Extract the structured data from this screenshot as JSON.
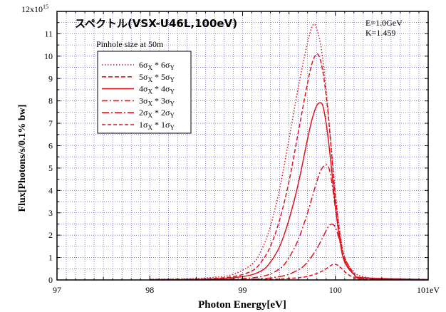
{
  "chart_data": {
    "type": "line",
    "title": "スペクトル(VSX-U46L,100eV)",
    "annotation": [
      "E=1.0GeV",
      "K=1.459"
    ],
    "legend_title": "Pinhole size at 50m",
    "legend_placement": "top-left",
    "xlabel": "Photon Energy[eV]",
    "ylabel": "Flux[Photons/s/0.1% bw]",
    "y_multiplier_label": "12x10",
    "y_multiplier_exp": "15",
    "x_unit_suffix": "eV",
    "xlim": [
      97,
      101
    ],
    "ylim": [
      0,
      12
    ],
    "y_scale": 1000000000000000.0,
    "xticks": [
      97,
      98,
      99,
      100,
      101
    ],
    "yticks": [
      0,
      1,
      2,
      3,
      4,
      5,
      6,
      7,
      8,
      9,
      10,
      11
    ],
    "grid": true,
    "color": "#e0141e",
    "series": [
      {
        "name": "6σX * 6σY",
        "legend": {
          "n": "6",
          "a": "σ",
          "as": "X",
          "b": "6σ",
          "bs": "Y"
        },
        "dash": "1.5,2.5",
        "x": [
          98.0,
          98.4,
          98.7,
          98.9,
          99.1,
          99.2,
          99.3,
          99.4,
          99.5,
          99.6,
          99.7,
          99.76,
          99.8,
          99.85,
          99.9,
          99.95,
          100.0,
          100.05,
          100.1,
          100.2,
          100.3,
          100.5,
          101.0
        ],
        "y": [
          0.03,
          0.05,
          0.12,
          0.25,
          0.7,
          1.3,
          2.4,
          4.1,
          6.3,
          8.6,
          10.6,
          11.4,
          11.2,
          10.3,
          8.5,
          6.2,
          3.9,
          2.1,
          1.0,
          0.35,
          0.15,
          0.05,
          0.02
        ]
      },
      {
        "name": "5σX * 5σY",
        "legend": {
          "n": "5",
          "a": "σ",
          "as": "X",
          "b": "5σ",
          "bs": "Y"
        },
        "dash": "6,3",
        "x": [
          98.0,
          98.6,
          98.9,
          99.1,
          99.2,
          99.3,
          99.4,
          99.5,
          99.6,
          99.7,
          99.75,
          99.8,
          99.84,
          99.88,
          99.92,
          99.96,
          100.0,
          100.05,
          100.1,
          100.2,
          100.3,
          101.0
        ],
        "y": [
          0.02,
          0.05,
          0.15,
          0.4,
          0.8,
          1.5,
          2.7,
          4.4,
          6.6,
          8.8,
          9.7,
          10.1,
          9.8,
          8.9,
          7.5,
          5.6,
          3.7,
          2.0,
          1.0,
          0.3,
          0.1,
          0.02
        ]
      },
      {
        "name": "4σX * 4σY",
        "legend": {
          "n": "4",
          "a": "σ",
          "as": "X",
          "b": "4σ",
          "bs": "Y"
        },
        "dash": "",
        "x": [
          98.0,
          98.6,
          99.0,
          99.2,
          99.3,
          99.4,
          99.5,
          99.6,
          99.7,
          99.75,
          99.8,
          99.85,
          99.88,
          99.92,
          99.96,
          100.0,
          100.05,
          100.1,
          100.2,
          100.3,
          101.0
        ],
        "y": [
          0.01,
          0.03,
          0.15,
          0.4,
          0.8,
          1.5,
          2.7,
          4.3,
          6.3,
          7.2,
          7.8,
          7.9,
          7.5,
          6.4,
          4.9,
          3.3,
          1.7,
          0.8,
          0.25,
          0.1,
          0.02
        ]
      },
      {
        "name": "3σX * 3σY",
        "legend": {
          "n": "3",
          "a": "σ",
          "as": "X",
          "b": "3σ",
          "bs": "Y"
        },
        "dash": "8,3,2,3",
        "x": [
          98.0,
          98.8,
          99.2,
          99.4,
          99.5,
          99.6,
          99.7,
          99.8,
          99.85,
          99.9,
          99.93,
          99.96,
          100.0,
          100.05,
          100.1,
          100.2,
          100.3,
          101.0
        ],
        "y": [
          0.01,
          0.03,
          0.15,
          0.5,
          1.0,
          1.8,
          3.0,
          4.4,
          4.95,
          5.15,
          5.0,
          4.4,
          3.2,
          1.8,
          0.9,
          0.25,
          0.08,
          0.01
        ]
      },
      {
        "name": "2σX * 2σY",
        "legend": {
          "n": "2",
          "a": "σ",
          "as": "X",
          "b": "2σ",
          "bs": "Y"
        },
        "dash": "10,3,2,3",
        "x": [
          98.0,
          99.0,
          99.4,
          99.6,
          99.7,
          99.8,
          99.87,
          99.92,
          99.96,
          100.0,
          100.05,
          100.1,
          100.2,
          100.3,
          101.0
        ],
        "y": [
          0.01,
          0.02,
          0.15,
          0.45,
          0.8,
          1.4,
          1.95,
          2.35,
          2.5,
          2.35,
          1.7,
          0.9,
          0.25,
          0.06,
          0.01
        ]
      },
      {
        "name": "1σX * 1σY",
        "legend": {
          "n": "1",
          "a": "σ",
          "as": "X",
          "b": "1σ",
          "bs": "Y"
        },
        "dash": "5,3",
        "x": [
          98.0,
          99.2,
          99.6,
          99.75,
          99.85,
          99.9,
          99.95,
          99.98,
          100.02,
          100.07,
          100.12,
          100.2,
          100.3,
          101.0
        ],
        "y": [
          0.0,
          0.02,
          0.1,
          0.22,
          0.38,
          0.5,
          0.64,
          0.7,
          0.67,
          0.5,
          0.3,
          0.1,
          0.03,
          0.0
        ]
      }
    ]
  }
}
